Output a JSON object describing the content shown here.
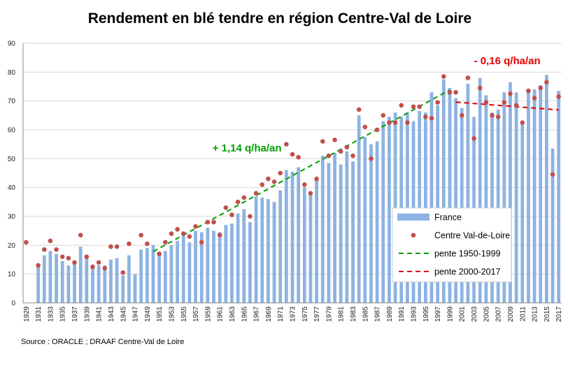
{
  "chart_data": {
    "type": "bar",
    "title": "Rendement en blé tendre en région Centre-Val de Loire",
    "xlabel": "",
    "ylabel": "",
    "ylim": [
      0,
      90
    ],
    "yticks": [
      0,
      10,
      20,
      30,
      40,
      50,
      60,
      70,
      80,
      90
    ],
    "grid": true,
    "legend_position": "bottom-right",
    "years": [
      1929,
      1930,
      1931,
      1932,
      1933,
      1934,
      1935,
      1936,
      1937,
      1938,
      1939,
      1940,
      1941,
      1942,
      1943,
      1944,
      1945,
      1946,
      1947,
      1948,
      1949,
      1950,
      1951,
      1952,
      1953,
      1954,
      1955,
      1956,
      1957,
      1958,
      1959,
      1960,
      1961,
      1962,
      1963,
      1964,
      1965,
      1966,
      1967,
      1968,
      1969,
      1970,
      1971,
      1972,
      1973,
      1974,
      1975,
      1976,
      1977,
      1978,
      1979,
      1980,
      1981,
      1982,
      1983,
      1984,
      1985,
      1986,
      1987,
      1988,
      1989,
      1990,
      1991,
      1992,
      1993,
      1994,
      1995,
      1996,
      1997,
      1998,
      1999,
      2000,
      2001,
      2002,
      2003,
      2004,
      2005,
      2006,
      2007,
      2008,
      2009,
      2010,
      2011,
      2012,
      2013,
      2014,
      2015,
      2016,
      2017
    ],
    "x_tick_labels": [
      "1929",
      "1931",
      "1933",
      "1935",
      "1937",
      "1939",
      "1941",
      "1943",
      "1945",
      "1947",
      "1949",
      "1951",
      "1953",
      "1955",
      "1957",
      "1959",
      "1961",
      "1963",
      "1965",
      "1967",
      "1969",
      "1971",
      "1973",
      "1975",
      "1977",
      "1979",
      "1981",
      "1983",
      "1985",
      "1987",
      "1989",
      "1991",
      "1993",
      "1995",
      "1997",
      "1999",
      "2001",
      "2003",
      "2005",
      "2007",
      "2009",
      "2011",
      "2013",
      "2015",
      "2017"
    ],
    "series": [
      {
        "name": "France",
        "kind": "bar",
        "color": "#8DB3E2",
        "values": [
          null,
          null,
          12.5,
          16.5,
          18,
          17,
          14.5,
          13,
          13.5,
          19.5,
          15.5,
          12.5,
          13,
          13,
          15,
          15.5,
          9.5,
          16.5,
          10,
          18.5,
          19,
          20,
          16.5,
          18,
          20,
          21.5,
          23.5,
          21,
          25,
          24.5,
          26,
          25,
          24.5,
          27,
          27.5,
          31,
          32.5,
          28,
          37,
          36.5,
          36,
          35,
          39,
          46,
          45.5,
          47,
          40,
          38,
          43.5,
          51,
          48.5,
          52,
          48,
          52.5,
          49,
          65,
          57.5,
          55,
          56,
          63,
          64.5,
          66,
          64.5,
          66,
          63,
          66.5,
          66,
          73,
          68.5,
          77.5,
          74.5,
          71,
          67.5,
          76,
          64.5,
          78,
          72,
          66,
          67,
          73,
          76.5,
          73,
          62.5,
          73.5,
          74,
          75.5,
          79,
          53.5,
          73.5
        ]
      },
      {
        "name": "Centre Val-de-Loire",
        "kind": "points",
        "color": "#C0504D",
        "values": [
          21,
          null,
          13,
          18.5,
          21.5,
          18.5,
          16,
          15.5,
          14,
          23.5,
          16,
          12.5,
          14,
          12,
          19.5,
          19.5,
          10.5,
          20.5,
          null,
          23.5,
          20.5,
          null,
          17,
          21,
          24,
          25.5,
          24,
          23,
          26.5,
          21,
          28,
          28,
          23.5,
          33,
          30.5,
          35,
          36.5,
          30,
          38,
          41,
          43,
          42,
          45,
          55,
          51.5,
          50.5,
          41,
          38,
          43,
          56,
          51,
          56.5,
          52.5,
          54,
          51,
          67,
          61,
          50,
          60,
          65,
          62.5,
          62.5,
          68.5,
          62.5,
          68,
          68,
          64.5,
          64,
          69.5,
          78.5,
          73,
          73,
          65,
          78,
          57,
          74.5,
          69.5,
          65,
          64.5,
          69.5,
          72.5,
          68.5,
          62.5,
          73.5,
          71,
          74.5,
          76.5,
          44.5,
          71.5
        ]
      },
      {
        "name": "pente 1950-1999",
        "kind": "trend",
        "color": "#00A000",
        "from": [
          1950,
          17.8
        ],
        "to": [
          1999,
          73.8
        ]
      },
      {
        "name": "pente 2000-2017",
        "kind": "trend",
        "color": "#E00000",
        "from": [
          2000,
          69.6
        ],
        "to": [
          2017,
          66.9
        ]
      }
    ],
    "annotations": [
      {
        "text": "+ 1,14 q/ha/an",
        "color": "#00A000",
        "at_year": 1965.5,
        "at_value": 52.5
      },
      {
        "text": "- 0,16 q/ha/an",
        "color": "#E00000",
        "at_year": 2008.5,
        "at_value": 82.7
      }
    ],
    "source": "Source : ORACLE ; DRAAF Centre-Val de Loire"
  }
}
